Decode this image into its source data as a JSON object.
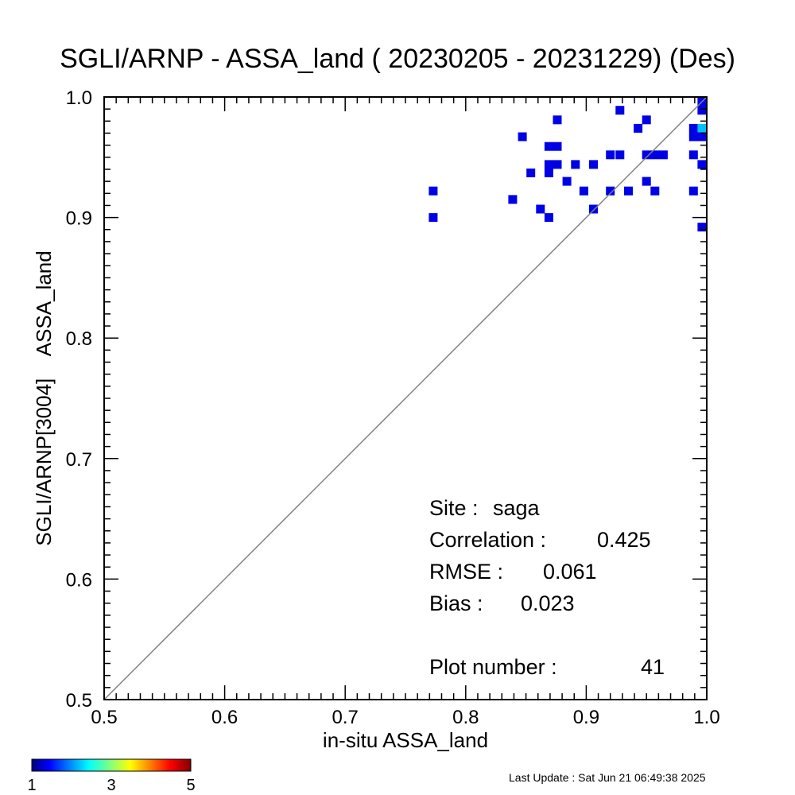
{
  "chart_data": {
    "type": "heatmap",
    "title": "SGLI/ARNP - ASSA_land ( 20230205 - 20231229) (Des)",
    "xlabel": "in-situ ASSA_land",
    "ylabel": "SGLI/ARNP[3004]    ASSA_land",
    "xlim": [
      0.5,
      1.0
    ],
    "ylim": [
      0.5,
      1.0
    ],
    "x_ticks": [
      "0.5",
      "0.6",
      "0.7",
      "0.8",
      "0.9",
      "1.0"
    ],
    "y_ticks": [
      "0.5",
      "0.6",
      "0.7",
      "0.8",
      "0.9",
      "1.0"
    ],
    "reference_line": "1:1",
    "colorbar": {
      "min": 1,
      "max": 5,
      "labels": [
        "1",
        "3",
        "5"
      ]
    },
    "points": [
      {
        "x": 0.773,
        "y": 0.922,
        "count": 1
      },
      {
        "x": 0.773,
        "y": 0.9,
        "count": 1
      },
      {
        "x": 0.839,
        "y": 0.915,
        "count": 1
      },
      {
        "x": 0.847,
        "y": 0.967,
        "count": 1
      },
      {
        "x": 0.854,
        "y": 0.937,
        "count": 1
      },
      {
        "x": 0.862,
        "y": 0.907,
        "count": 1
      },
      {
        "x": 0.869,
        "y": 0.9,
        "count": 1
      },
      {
        "x": 0.869,
        "y": 0.937,
        "count": 1
      },
      {
        "x": 0.869,
        "y": 0.944,
        "count": 1
      },
      {
        "x": 0.869,
        "y": 0.959,
        "count": 1
      },
      {
        "x": 0.876,
        "y": 0.959,
        "count": 1
      },
      {
        "x": 0.876,
        "y": 0.944,
        "count": 1
      },
      {
        "x": 0.876,
        "y": 0.981,
        "count": 1
      },
      {
        "x": 0.884,
        "y": 0.93,
        "count": 1
      },
      {
        "x": 0.891,
        "y": 0.944,
        "count": 1
      },
      {
        "x": 0.898,
        "y": 0.922,
        "count": 1
      },
      {
        "x": 0.906,
        "y": 0.907,
        "count": 1
      },
      {
        "x": 0.906,
        "y": 0.944,
        "count": 1
      },
      {
        "x": 0.92,
        "y": 0.922,
        "count": 1
      },
      {
        "x": 0.92,
        "y": 0.952,
        "count": 1
      },
      {
        "x": 0.928,
        "y": 0.952,
        "count": 1
      },
      {
        "x": 0.928,
        "y": 0.989,
        "count": 1
      },
      {
        "x": 0.935,
        "y": 0.922,
        "count": 1
      },
      {
        "x": 0.943,
        "y": 0.974,
        "count": 1
      },
      {
        "x": 0.95,
        "y": 0.93,
        "count": 1
      },
      {
        "x": 0.95,
        "y": 0.952,
        "count": 1
      },
      {
        "x": 0.95,
        "y": 0.981,
        "count": 1
      },
      {
        "x": 0.957,
        "y": 0.952,
        "count": 1
      },
      {
        "x": 0.957,
        "y": 0.922,
        "count": 1
      },
      {
        "x": 0.964,
        "y": 0.952,
        "count": 1
      },
      {
        "x": 0.989,
        "y": 0.922,
        "count": 1
      },
      {
        "x": 0.989,
        "y": 0.952,
        "count": 1
      },
      {
        "x": 0.989,
        "y": 0.967,
        "count": 1
      },
      {
        "x": 0.989,
        "y": 0.974,
        "count": 1
      },
      {
        "x": 0.996,
        "y": 0.974,
        "count": 2
      },
      {
        "x": 0.996,
        "y": 0.967,
        "count": 1
      },
      {
        "x": 0.996,
        "y": 0.944,
        "count": 1
      },
      {
        "x": 0.996,
        "y": 0.892,
        "count": 1
      },
      {
        "x": 0.996,
        "y": 0.996,
        "count": 1
      },
      {
        "x": 0.996,
        "y": 0.989,
        "count": 1
      }
    ],
    "stats": {
      "site_label": "Site :",
      "site_value": "saga",
      "correlation_label": "Correlation :",
      "correlation_value": "0.425",
      "rmse_label": "RMSE :",
      "rmse_value": "0.061",
      "bias_label": "Bias :",
      "bias_value": "0.023",
      "plot_number_label": "Plot number :",
      "plot_number_value": "41"
    }
  },
  "footer": {
    "last_update": "Last Update : Sat Jun 21 06:49:38 2025"
  }
}
